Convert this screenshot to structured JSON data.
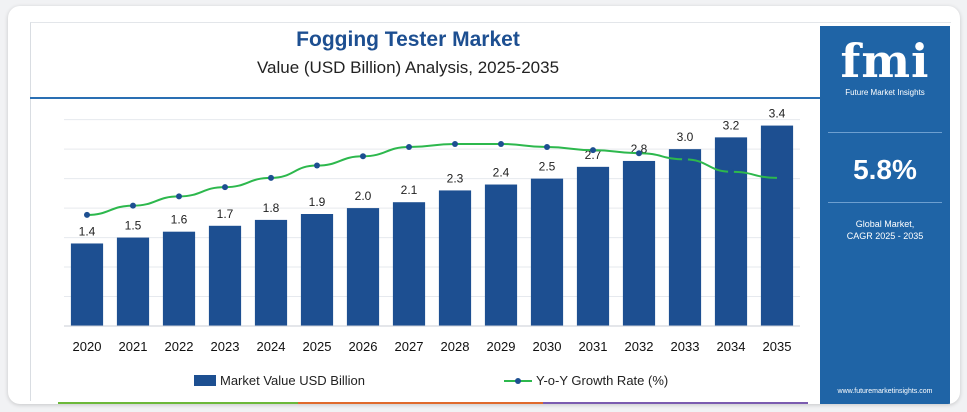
{
  "title": "Fogging Tester Market",
  "subtitle": "Value (USD Billion) Analysis, 2025-2035",
  "panel": {
    "logo": "fmi",
    "logo_caption": "Future Market Insights",
    "cagr_value": "5.8%",
    "cagr_label_line1": "Global Market,",
    "cagr_label_line2": "CAGR 2025 - 2035",
    "website": "www.futuremarketinsights.com"
  },
  "colors": {
    "bar": "#1d4f91",
    "line": "#2db84d",
    "marker": "#1d4f91",
    "panel": "#1f64a6",
    "footer": [
      "#6cb83a",
      "#e06a2c",
      "#7b5cb0"
    ]
  },
  "chart_data": {
    "type": "bar",
    "categories": [
      "2020",
      "2021",
      "2022",
      "2023",
      "2024",
      "2025",
      "2026",
      "2027",
      "2028",
      "2029",
      "2030",
      "2031",
      "2032",
      "2033",
      "2034",
      "2035"
    ],
    "series": [
      {
        "name": "Market Value USD Billion",
        "type": "bar",
        "values": [
          1.4,
          1.5,
          1.6,
          1.7,
          1.8,
          1.9,
          2.0,
          2.1,
          2.3,
          2.4,
          2.5,
          2.7,
          2.8,
          3.0,
          3.2,
          3.4
        ],
        "labels": [
          "1.4",
          "1.5",
          "1.6",
          "1.7",
          "1.8",
          "1.9",
          "2.0",
          "2.1",
          "2.3",
          "2.4",
          "2.5",
          "2.7",
          "2.8",
          "3.0",
          "3.2",
          "3.4"
        ]
      },
      {
        "name": "Y-o-Y Growth Rate (%)",
        "type": "line",
        "values": [
          3.6,
          3.9,
          4.2,
          4.5,
          4.8,
          5.2,
          5.5,
          5.8,
          5.9,
          5.9,
          5.8,
          5.7,
          5.6,
          5.4,
          5.0,
          4.8
        ]
      }
    ],
    "ylim": [
      0,
      3.8
    ],
    "grid": true,
    "legend": "bottom"
  }
}
